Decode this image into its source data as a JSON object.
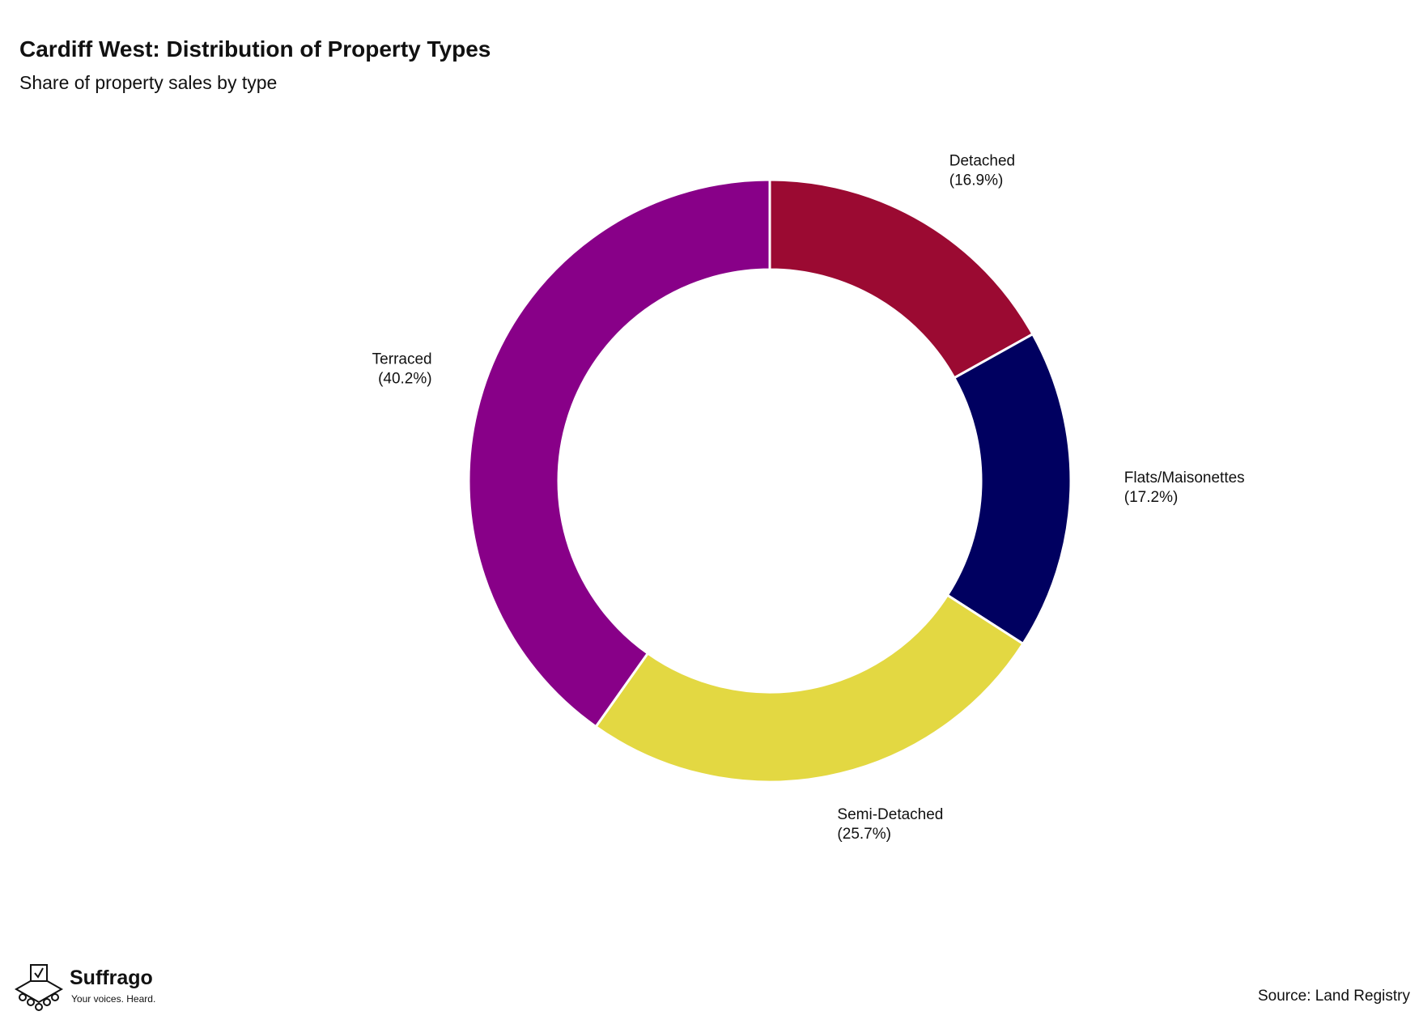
{
  "chart_data": {
    "type": "pie",
    "title": "Cardiff West: Distribution of Property Types",
    "subtitle": "Share of property sales by type",
    "categories": [
      "Detached",
      "Flats/Maisonettes",
      "Semi-Detached",
      "Terraced"
    ],
    "values": [
      16.9,
      17.2,
      25.7,
      40.2
    ],
    "value_labels": [
      "(16.9%)",
      "(17.2%)",
      "(25.7%)",
      "(40.2%)"
    ],
    "colors": [
      "#9b0a32",
      "#000060",
      "#e3d842",
      "#880088"
    ],
    "source": "Source: Land Registry"
  },
  "branding": {
    "name": "Suffrago",
    "tagline": "Your voices. Heard."
  }
}
